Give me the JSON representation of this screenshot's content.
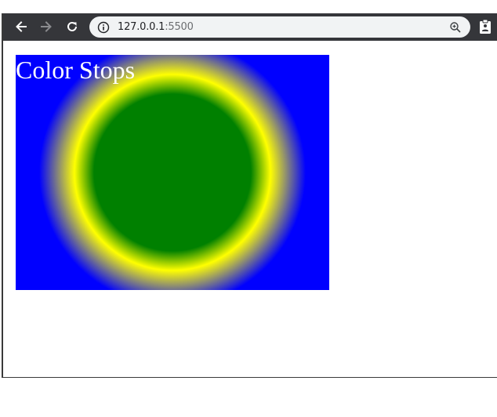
{
  "browser": {
    "url": {
      "host": "127.0.0.1",
      "port": ":5500"
    },
    "icons": {
      "back": "arrow-left-icon",
      "forward": "arrow-right-icon",
      "reload": "reload-icon",
      "info": "info-icon",
      "zoom": "zoom-icon",
      "extension": "clipboard-icon"
    }
  },
  "page": {
    "heading": "Color Stops",
    "gradient": {
      "type": "radial",
      "stops": [
        "#008000",
        "#ffff00",
        "#0000ff"
      ]
    }
  },
  "colors": {
    "toolbar": "#35363a",
    "omnibox": "#f1f3f4",
    "heading_text": "#ffffff"
  }
}
